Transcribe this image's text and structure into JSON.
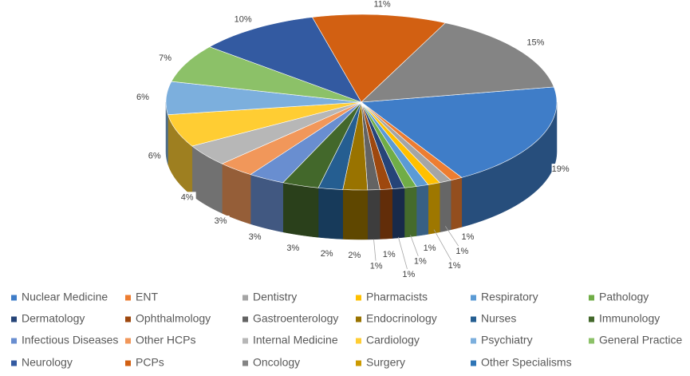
{
  "chart_data": {
    "type": "pie",
    "categories": [
      "Nuclear Medicine",
      "ENT",
      "Dentistry",
      "Pharmacists",
      "Respiratory",
      "Pathology",
      "Dermatology",
      "Ophthalmology",
      "Gastroenterology",
      "Endocrinology",
      "Nurses",
      "Immunology",
      "Infectious Diseases",
      "Other HCPs",
      "Internal Medicine",
      "Cardiology",
      "Psychiatry",
      "General Practice",
      "Neurology",
      "PCPs",
      "Oncology",
      "Surgery",
      "Other Specialisms"
    ],
    "values": [
      19,
      1,
      1,
      1,
      1,
      1,
      1,
      1,
      1,
      2,
      2,
      3,
      3,
      3,
      4,
      6,
      6,
      7,
      10,
      11,
      15,
      0,
      0
    ],
    "value_labels": [
      "19%",
      "1%",
      "1%",
      "1%",
      "1%",
      "1%",
      "1%",
      "1%",
      "1%",
      "2%",
      "2%",
      "3%",
      "3%",
      "3%",
      "4%",
      "6%",
      "6%",
      "7%",
      "10%",
      "11%",
      "15%",
      null,
      null
    ],
    "colors": [
      "#3f7dc8",
      "#ed7d31",
      "#a5a5a5",
      "#ffc000",
      "#5b9bd5",
      "#70ad47",
      "#264478",
      "#9e480e",
      "#636363",
      "#997300",
      "#255e91",
      "#43682b",
      "#698ed0",
      "#f1975a",
      "#b7b7b7",
      "#ffcd33",
      "#7cafdd",
      "#8cc168",
      "#335aa1",
      "#d26012",
      "#848484",
      "#cc9a00",
      "#2e75b6"
    ],
    "legend": "bottom"
  }
}
